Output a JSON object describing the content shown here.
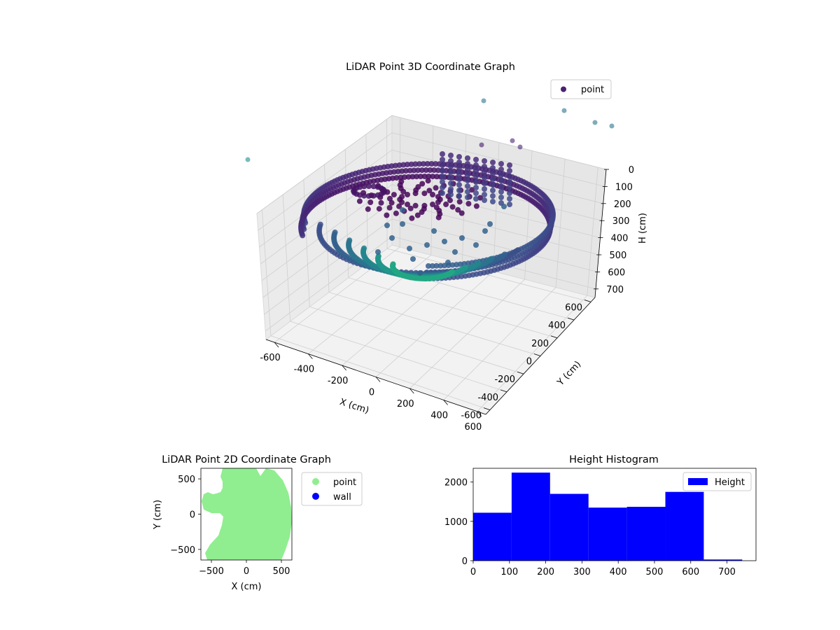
{
  "chart_data": [
    {
      "type": "scatter",
      "projection": "3d",
      "title": "LiDAR Point 3D Coordinate Graph",
      "xlabel": "X (cm)",
      "ylabel": "Y (cm)",
      "zlabel": "H (cm)",
      "xlim": [
        -650,
        650
      ],
      "ylim": [
        -650,
        650
      ],
      "zlim": [
        0,
        750
      ],
      "z_inverted": true,
      "xticks": [
        -600,
        -400,
        -200,
        0,
        200,
        400,
        600
      ],
      "yticks": [
        -600,
        -400,
        -200,
        0,
        200,
        400,
        600
      ],
      "zticks": [
        0,
        100,
        200,
        300,
        400,
        500,
        600,
        700
      ],
      "grid": true,
      "legend": "top-right",
      "colormap": "viridis",
      "series": [
        {
          "name": "point",
          "description_points": [
            {
              "x": -480,
              "y": 260,
              "h": 120
            },
            {
              "x": -420,
              "y": 120,
              "h": 200
            },
            {
              "x": -560,
              "y": -200,
              "h": 320
            },
            {
              "x": -300,
              "y": -420,
              "h": 380
            },
            {
              "x": 0,
              "y": -520,
              "h": 420
            },
            {
              "x": 300,
              "y": -480,
              "h": 420
            },
            {
              "x": 520,
              "y": -240,
              "h": 360
            },
            {
              "x": 600,
              "y": 80,
              "h": 260
            },
            {
              "x": 540,
              "y": 380,
              "h": 160
            },
            {
              "x": 300,
              "y": 540,
              "h": 80
            },
            {
              "x": 0,
              "y": 560,
              "h": 60
            },
            {
              "x": -240,
              "y": 480,
              "h": 60
            },
            {
              "x": 0,
              "y": 0,
              "h": 600
            },
            {
              "x": 120,
              "y": -120,
              "h": 640
            },
            {
              "x": -100,
              "y": 200,
              "h": 500
            },
            {
              "x": 650,
              "y": 620,
              "h": 700
            },
            {
              "x": -620,
              "y": 620,
              "h": 720
            }
          ]
        }
      ]
    },
    {
      "type": "scatter",
      "title": "LiDAR Point 2D Coordinate Graph",
      "xlabel": "X (cm)",
      "ylabel": "Y (cm)",
      "xlim": [
        -650,
        650
      ],
      "ylim": [
        -650,
        650
      ],
      "xticks": [
        -500,
        0,
        500
      ],
      "yticks": [
        -500,
        0,
        500
      ],
      "legend": "outside-right",
      "series": [
        {
          "name": "point",
          "color": "#90ee90"
        },
        {
          "name": "wall",
          "color": "#0000ff"
        }
      ]
    },
    {
      "type": "bar",
      "title": "Height Histogram",
      "xlim": [
        0,
        780
      ],
      "ylim": [
        0,
        2350
      ],
      "xticks": [
        0,
        100,
        200,
        300,
        400,
        500,
        600,
        700
      ],
      "yticks": [
        0,
        1000,
        2000
      ],
      "bin_edges": [
        0,
        106,
        212,
        318,
        424,
        530,
        636,
        742
      ],
      "values": [
        1220,
        2240,
        1700,
        1350,
        1370,
        1750,
        30
      ],
      "color": "#0000ff",
      "legend": "top-right",
      "series": [
        {
          "name": "Height"
        }
      ]
    }
  ]
}
